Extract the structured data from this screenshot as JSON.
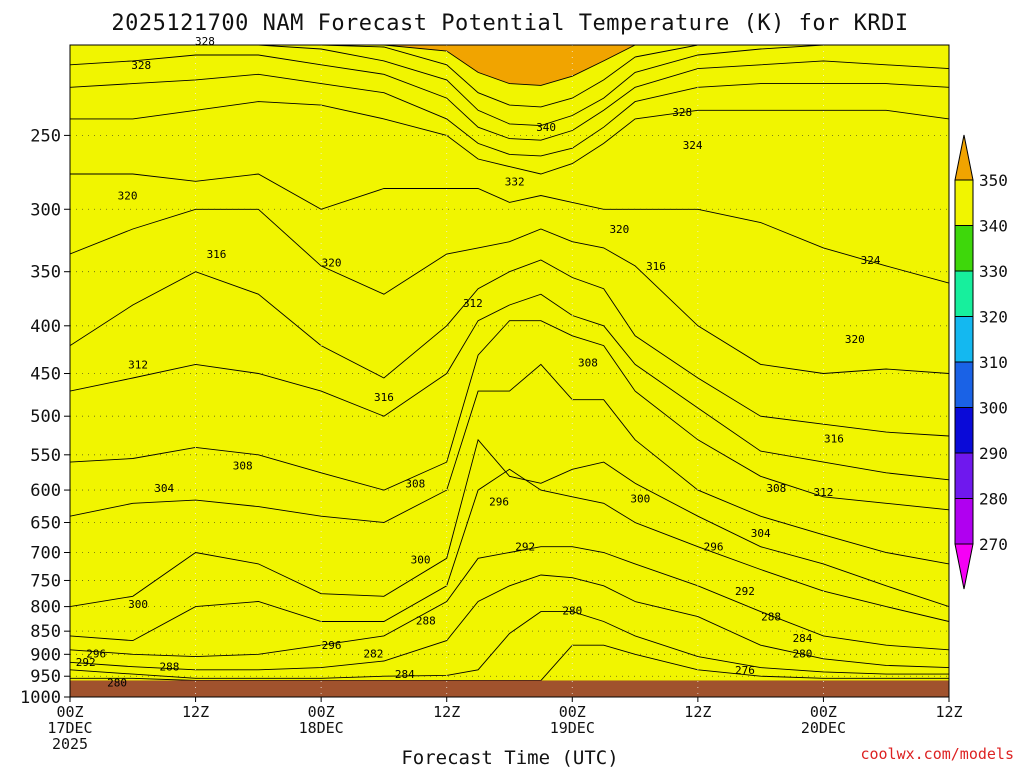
{
  "chart_data": {
    "type": "heatmap",
    "title": "2025121700 NAM Forecast Potential Temperature (K) for KRDI",
    "xlabel": "Forecast Time (UTC)",
    "ylabel": "",
    "credit": "coolwx.com/models",
    "y_axis": {
      "quantity": "pressure (hPa)",
      "scale": "log",
      "reversed": true,
      "ticks": [
        250,
        300,
        350,
        400,
        450,
        500,
        550,
        600,
        650,
        700,
        750,
        800,
        850,
        900,
        950,
        1000
      ],
      "range": [
        1000,
        200
      ]
    },
    "x_axis": {
      "range_hours": [
        0,
        84
      ],
      "ticks": [
        {
          "hour": 0,
          "lines": [
            "00Z",
            "17DEC",
            "2025"
          ]
        },
        {
          "hour": 12,
          "lines": [
            "12Z"
          ]
        },
        {
          "hour": 24,
          "lines": [
            "00Z",
            "18DEC"
          ]
        },
        {
          "hour": 36,
          "lines": [
            "12Z"
          ]
        },
        {
          "hour": 48,
          "lines": [
            "00Z",
            "19DEC"
          ]
        },
        {
          "hour": 60,
          "lines": [
            "12Z"
          ]
        },
        {
          "hour": 72,
          "lines": [
            "00Z",
            "20DEC"
          ]
        },
        {
          "hour": 84,
          "lines": [
            "12Z"
          ]
        }
      ]
    },
    "surface_pressure": 960,
    "colorbar": {
      "levels": [
        270,
        280,
        290,
        300,
        310,
        320,
        330,
        340,
        350
      ],
      "colors": [
        "#f500f5",
        "#b000f0",
        "#6f18ee",
        "#0a0ad8",
        "#1a62e6",
        "#14b8f0",
        "#17ef9d",
        "#3ed70b",
        "#f1f500",
        "#f1a400"
      ]
    },
    "contour_interval": 2,
    "contour_levels": [
      276,
      278,
      280,
      282,
      284,
      286,
      288,
      290,
      292,
      294,
      296,
      298,
      300,
      302,
      304,
      306,
      308,
      310,
      312,
      314,
      316,
      318,
      320,
      322,
      324,
      326,
      328,
      330,
      332,
      334,
      336,
      338,
      340,
      342,
      344,
      346,
      348
    ],
    "isentrope_profile_hours": [
      0,
      6,
      12,
      18,
      24,
      30,
      36,
      39,
      42,
      45,
      48,
      51,
      54,
      60,
      66,
      72,
      78,
      84
    ],
    "isentrope_profiles": [
      {
        "theta": 280,
        "p": [
          955,
          955,
          960,
          960,
          960,
          960,
          960,
          960,
          960,
          960,
          880,
          880,
          900,
          935,
          950,
          955,
          955,
          955
        ]
      },
      {
        "theta": 284,
        "p": [
          935,
          945,
          955,
          955,
          955,
          950,
          948,
          935,
          855,
          810,
          810,
          830,
          860,
          905,
          930,
          940,
          945,
          945
        ]
      },
      {
        "theta": 288,
        "p": [
          918,
          928,
          935,
          935,
          930,
          915,
          870,
          790,
          760,
          740,
          745,
          760,
          790,
          820,
          880,
          910,
          925,
          930
        ]
      },
      {
        "theta": 292,
        "p": [
          890,
          900,
          905,
          900,
          880,
          860,
          790,
          710,
          700,
          690,
          690,
          700,
          720,
          760,
          810,
          860,
          880,
          890
        ]
      },
      {
        "theta": 296,
        "p": [
          860,
          870,
          800,
          790,
          830,
          830,
          760,
          600,
          570,
          600,
          610,
          620,
          650,
          690,
          730,
          770,
          800,
          830
        ]
      },
      {
        "theta": 300,
        "p": [
          800,
          780,
          700,
          720,
          775,
          780,
          710,
          530,
          580,
          590,
          570,
          560,
          590,
          640,
          690,
          720,
          760,
          800
        ]
      },
      {
        "theta": 304,
        "p": [
          640,
          620,
          615,
          625,
          640,
          650,
          600,
          470,
          470,
          440,
          480,
          480,
          530,
          600,
          640,
          670,
          700,
          720
        ]
      },
      {
        "theta": 308,
        "p": [
          560,
          555,
          540,
          550,
          575,
          600,
          560,
          430,
          395,
          395,
          410,
          420,
          470,
          530,
          580,
          610,
          620,
          630
        ]
      },
      {
        "theta": 312,
        "p": [
          470,
          455,
          440,
          450,
          470,
          500,
          450,
          395,
          380,
          370,
          390,
          400,
          440,
          490,
          545,
          560,
          575,
          585
        ]
      },
      {
        "theta": 316,
        "p": [
          420,
          380,
          350,
          370,
          420,
          455,
          400,
          365,
          350,
          340,
          355,
          365,
          410,
          455,
          500,
          510,
          520,
          525
        ]
      },
      {
        "theta": 320,
        "p": [
          335,
          315,
          300,
          300,
          345,
          370,
          335,
          330,
          325,
          315,
          325,
          330,
          345,
          400,
          440,
          450,
          445,
          450
        ]
      },
      {
        "theta": 324,
        "p": [
          275,
          275,
          280,
          275,
          300,
          285,
          285,
          285,
          295,
          290,
          295,
          300,
          300,
          300,
          310,
          330,
          345,
          360
        ]
      },
      {
        "theta": 328,
        "p": [
          240,
          240,
          235,
          230,
          232,
          240,
          250,
          265,
          270,
          275,
          268,
          255,
          240,
          235,
          235,
          235,
          235,
          240
        ]
      },
      {
        "theta": 332,
        "p": [
          222,
          220,
          218,
          215,
          220,
          225,
          240,
          255,
          262,
          263,
          258,
          245,
          230,
          222,
          220,
          220,
          220,
          222
        ]
      },
      {
        "theta": 336,
        "p": [
          210,
          208,
          205,
          205,
          210,
          215,
          228,
          245,
          252,
          253,
          247,
          235,
          222,
          212,
          210,
          208,
          210,
          212
        ]
      },
      {
        "theta": 340,
        "p": [
          200,
          200,
          200,
          200,
          202,
          208,
          218,
          235,
          243,
          244,
          238,
          228,
          214,
          205,
          202,
          200,
          200,
          200
        ]
      },
      {
        "theta": 344,
        "p": [
          200,
          200,
          200,
          200,
          200,
          201,
          210,
          225,
          232,
          233,
          228,
          218,
          206,
          200,
          200,
          200,
          200,
          200
        ]
      },
      {
        "theta": 348,
        "p": [
          200,
          200,
          200,
          200,
          200,
          200,
          203,
          214,
          220,
          221,
          216,
          208,
          200,
          200,
          200,
          200,
          200,
          200
        ]
      }
    ],
    "contour_labels": [
      {
        "text": "328",
        "hour": 6.8,
        "p": 210
      },
      {
        "text": "328",
        "hour": 12.9,
        "p": 198
      },
      {
        "text": "328",
        "hour": 58.5,
        "p": 236
      },
      {
        "text": "340",
        "hour": 45.5,
        "p": 245
      },
      {
        "text": "324",
        "hour": 59.5,
        "p": 256
      },
      {
        "text": "332",
        "hour": 42.5,
        "p": 280
      },
      {
        "text": "320",
        "hour": 5.5,
        "p": 290
      },
      {
        "text": "320",
        "hour": 52.5,
        "p": 315
      },
      {
        "text": "316",
        "hour": 14,
        "p": 335
      },
      {
        "text": "320",
        "hour": 25,
        "p": 342
      },
      {
        "text": "316",
        "hour": 56,
        "p": 345
      },
      {
        "text": "324",
        "hour": 76.5,
        "p": 340
      },
      {
        "text": "312",
        "hour": 38.5,
        "p": 378
      },
      {
        "text": "320",
        "hour": 75,
        "p": 413
      },
      {
        "text": "312",
        "hour": 6.5,
        "p": 440
      },
      {
        "text": "308",
        "hour": 49.5,
        "p": 438
      },
      {
        "text": "316",
        "hour": 30,
        "p": 477
      },
      {
        "text": "316",
        "hour": 73,
        "p": 528
      },
      {
        "text": "308",
        "hour": 16.5,
        "p": 565
      },
      {
        "text": "308",
        "hour": 33,
        "p": 590
      },
      {
        "text": "304",
        "hour": 9,
        "p": 597
      },
      {
        "text": "296",
        "hour": 41,
        "p": 617
      },
      {
        "text": "300",
        "hour": 54.5,
        "p": 613
      },
      {
        "text": "308",
        "hour": 67.5,
        "p": 597
      },
      {
        "text": "312",
        "hour": 72,
        "p": 603
      },
      {
        "text": "304",
        "hour": 66,
        "p": 667
      },
      {
        "text": "296",
        "hour": 61.5,
        "p": 690
      },
      {
        "text": "292",
        "hour": 43.5,
        "p": 690
      },
      {
        "text": "300",
        "hour": 33.5,
        "p": 712
      },
      {
        "text": "292",
        "hour": 64.5,
        "p": 770
      },
      {
        "text": "300",
        "hour": 6.5,
        "p": 795
      },
      {
        "text": "280",
        "hour": 48,
        "p": 808
      },
      {
        "text": "288",
        "hour": 34,
        "p": 828
      },
      {
        "text": "288",
        "hour": 67,
        "p": 820
      },
      {
        "text": "284",
        "hour": 70,
        "p": 865
      },
      {
        "text": "296",
        "hour": 25,
        "p": 880
      },
      {
        "text": "282",
        "hour": 29,
        "p": 898
      },
      {
        "text": "280",
        "hour": 70,
        "p": 898
      },
      {
        "text": "296",
        "hour": 2.5,
        "p": 898
      },
      {
        "text": "292",
        "hour": 1.5,
        "p": 917
      },
      {
        "text": "288",
        "hour": 9.5,
        "p": 928
      },
      {
        "text": "284",
        "hour": 32,
        "p": 945
      },
      {
        "text": "276",
        "hour": 64.5,
        "p": 935
      },
      {
        "text": "280",
        "hour": 4.5,
        "p": 965
      }
    ]
  }
}
